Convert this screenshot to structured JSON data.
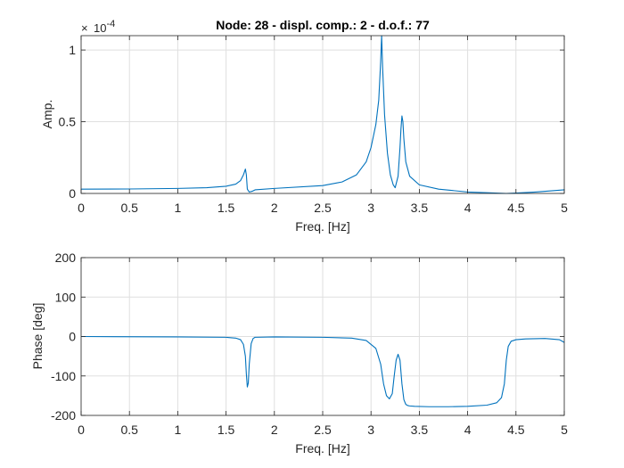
{
  "chart_data": [
    {
      "type": "line",
      "title": "Node: 28 - displ. comp.: 2 - d.o.f.: 77",
      "xlabel": "Freq. [Hz]",
      "ylabel": "Amp.",
      "y_exponent_label": "×10^-4",
      "y_exponent_base": "10",
      "y_exponent_power": "-4",
      "xlim": [
        0,
        5
      ],
      "ylim": [
        0,
        1.1
      ],
      "x_ticks": [
        0,
        0.5,
        1,
        1.5,
        2,
        2.5,
        3,
        3.5,
        4,
        4.5,
        5
      ],
      "x_tick_labels": [
        "0",
        "0.5",
        "1",
        "1.5",
        "2",
        "2.5",
        "3",
        "3.5",
        "4",
        "4.5",
        "5"
      ],
      "y_ticks": [
        0,
        0.5,
        1
      ],
      "y_tick_labels": [
        "0",
        "0.5",
        "1"
      ],
      "grid": true,
      "color": "#0072bd",
      "series": [
        {
          "x": [
            0,
            0.5,
            1.0,
            1.3,
            1.5,
            1.6,
            1.65,
            1.68,
            1.7,
            1.71,
            1.72,
            1.74,
            1.77,
            1.8,
            2.0,
            2.5,
            2.7,
            2.85,
            2.95,
            3.0,
            3.05,
            3.08,
            3.1,
            3.11,
            3.12,
            3.14,
            3.17,
            3.2,
            3.23,
            3.25,
            3.28,
            3.3,
            3.31,
            3.32,
            3.33,
            3.34,
            3.36,
            3.4,
            3.5,
            3.7,
            4.0,
            4.2,
            4.4,
            4.5,
            4.7,
            5.0
          ],
          "y": [
            0.03,
            0.031,
            0.035,
            0.04,
            0.05,
            0.065,
            0.09,
            0.13,
            0.17,
            0.13,
            0.03,
            0.01,
            0.015,
            0.025,
            0.035,
            0.055,
            0.08,
            0.13,
            0.22,
            0.32,
            0.48,
            0.65,
            0.92,
            1.1,
            0.88,
            0.55,
            0.28,
            0.13,
            0.06,
            0.04,
            0.12,
            0.32,
            0.45,
            0.54,
            0.5,
            0.38,
            0.22,
            0.12,
            0.06,
            0.03,
            0.01,
            0.005,
            0.0,
            0.003,
            0.01,
            0.025
          ]
        }
      ]
    },
    {
      "type": "line",
      "title": "",
      "xlabel": "Freq. [Hz]",
      "ylabel": "Phase [deg]",
      "xlim": [
        0,
        5
      ],
      "ylim": [
        -200,
        200
      ],
      "x_ticks": [
        0,
        0.5,
        1,
        1.5,
        2,
        2.5,
        3,
        3.5,
        4,
        4.5,
        5
      ],
      "x_tick_labels": [
        "0",
        "0.5",
        "1",
        "1.5",
        "2",
        "2.5",
        "3",
        "3.5",
        "4",
        "4.5",
        "5"
      ],
      "y_ticks": [
        -200,
        -100,
        0,
        100,
        200
      ],
      "y_tick_labels": [
        "-200",
        "-100",
        "0",
        "100",
        "200"
      ],
      "grid": true,
      "color": "#0072bd",
      "series": [
        {
          "x": [
            0,
            1.0,
            1.5,
            1.6,
            1.65,
            1.68,
            1.7,
            1.71,
            1.72,
            1.73,
            1.74,
            1.76,
            1.78,
            1.8,
            2.0,
            2.5,
            2.8,
            2.95,
            3.05,
            3.1,
            3.13,
            3.16,
            3.19,
            3.22,
            3.24,
            3.26,
            3.28,
            3.3,
            3.32,
            3.34,
            3.36,
            3.38,
            3.4,
            3.45,
            3.6,
            3.8,
            4.0,
            4.2,
            4.3,
            4.35,
            4.38,
            4.4,
            4.42,
            4.45,
            4.5,
            4.6,
            4.8,
            4.95,
            5.0
          ],
          "y": [
            0,
            -1,
            -2,
            -4,
            -8,
            -20,
            -50,
            -95,
            -128,
            -118,
            -70,
            -18,
            -5,
            -2,
            -1,
            -2,
            -4,
            -10,
            -30,
            -70,
            -120,
            -150,
            -158,
            -145,
            -100,
            -60,
            -45,
            -60,
            -120,
            -160,
            -172,
            -175,
            -176,
            -177,
            -178,
            -178,
            -177,
            -174,
            -168,
            -155,
            -120,
            -60,
            -25,
            -12,
            -8,
            -6,
            -5,
            -8,
            -15
          ]
        }
      ]
    }
  ]
}
